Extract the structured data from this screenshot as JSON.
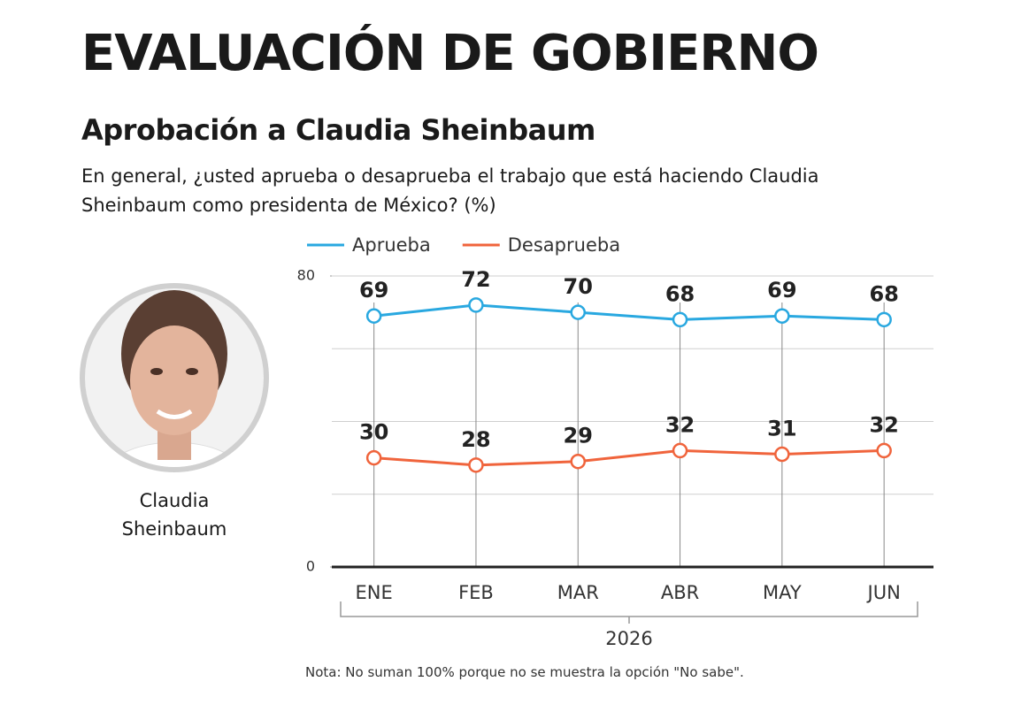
{
  "header": {
    "title": "EVALUACIÓN DE GOBIERNO",
    "subtitle": "Aprobación a Claudia Sheinbaum",
    "question": "En general, ¿usted aprueba o desaprueba el trabajo que está haciendo Claudia Sheinbaum como presidenta de México? (%)"
  },
  "photo_caption": "Claudia Sheinbaum",
  "chart_data": {
    "type": "line",
    "categories": [
      "ENE",
      "FEB",
      "MAR",
      "ABR",
      "MAY",
      "JUN"
    ],
    "x_group_label": "2026",
    "series": [
      {
        "name": "Aprueba",
        "color": "#29a8e0",
        "values": [
          69,
          72,
          70,
          68,
          69,
          68
        ]
      },
      {
        "name": "Desaprueba",
        "color": "#f0643c",
        "values": [
          30,
          28,
          29,
          32,
          31,
          32
        ]
      }
    ],
    "ylim": [
      0,
      80
    ],
    "yticks": [
      0,
      80
    ],
    "grid": true,
    "ygrid": [
      20,
      40,
      60,
      80
    ]
  },
  "note": "Nota: No suman 100% porque no se muestra la opción \"No sabe\"."
}
